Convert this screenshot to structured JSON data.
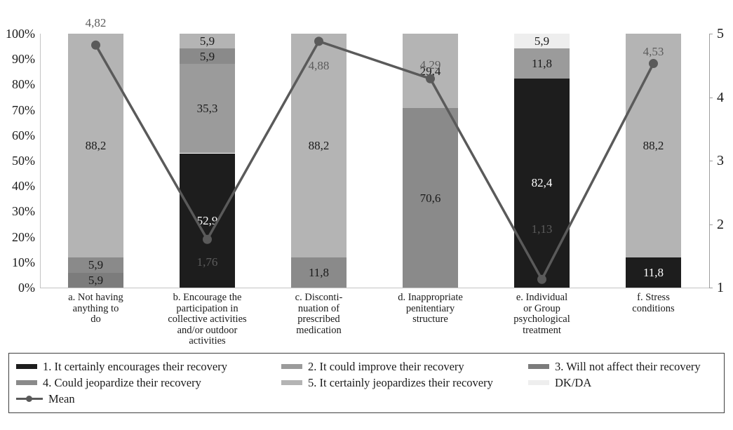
{
  "chart_data": {
    "type": "bar",
    "subtype": "stacked-percent-with-mean-line",
    "title": "",
    "categories": [
      "a. Not having\nanything to\ndo",
      "b. Encourage the\nparticipation in\ncollective activities\nand/or outdoor\nactivities",
      "c. Disconti-\nnuation of\nprescribed\nmedication",
      "d. Inappropriate\npenitentiary\nstructure",
      "e. Individual\nor Group\npsychological\ntreatment",
      "f. Stress\nconditions"
    ],
    "series": [
      {
        "name": "1. It certainly encourages their recovery",
        "color": "#1d1d1d",
        "label_color": "#ffffff",
        "values": [
          null,
          52.9,
          null,
          null,
          82.4,
          11.8
        ]
      },
      {
        "name": "2. It could improve their recovery",
        "color": "#9b9b9b",
        "label_color": "#1a1a1a",
        "values": [
          null,
          35.3,
          null,
          null,
          11.8,
          null
        ]
      },
      {
        "name": "3. Will not affect their recovery",
        "color": "#7c7c7c",
        "label_color": "#1a1a1a",
        "values": [
          5.9,
          null,
          null,
          null,
          null,
          null
        ]
      },
      {
        "name": "4. Could jeopardize their recovery",
        "color": "#8a8a8a",
        "label_color": "#1a1a1a",
        "values": [
          5.9,
          5.9,
          11.8,
          70.6,
          null,
          null
        ]
      },
      {
        "name": "5. It certainly jeopardizes their recovery",
        "color": "#b4b4b4",
        "label_color": "#1a1a1a",
        "values": [
          88.2,
          5.9,
          88.2,
          29.4,
          null,
          88.2
        ]
      },
      {
        "name": "DK/DA",
        "color": "#eeeeee",
        "label_color": "#1a1a1a",
        "values": [
          null,
          null,
          null,
          null,
          5.9,
          null
        ]
      }
    ],
    "mean_series": {
      "name": "Mean",
      "color": "#5a5a5a",
      "values": [
        4.82,
        1.76,
        4.88,
        4.29,
        1.13,
        4.53
      ],
      "labels": [
        "4,82",
        "1,76",
        "4,88",
        "4,29",
        "1,13",
        "4,53"
      ],
      "label_dy": [
        -40,
        24,
        26,
        -28,
        -80,
        -26
      ]
    },
    "left_axis": {
      "ticks": [
        "0%",
        "10%",
        "20%",
        "30%",
        "40%",
        "50%",
        "60%",
        "70%",
        "80%",
        "90%",
        "100%"
      ],
      "min": 0,
      "max": 100
    },
    "right_axis": {
      "ticks": [
        "1",
        "2",
        "3",
        "4",
        "5"
      ],
      "min": 1,
      "max": 5
    },
    "grid": false,
    "legend_position": "bottom",
    "decimal_separator": ","
  }
}
